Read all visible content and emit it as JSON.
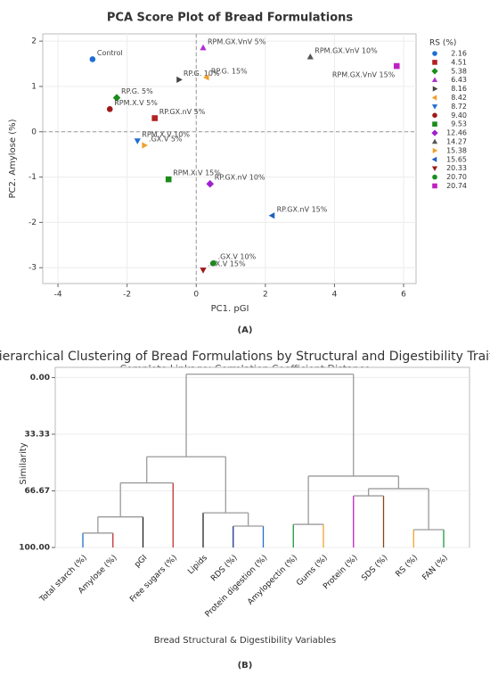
{
  "chart_data": [
    {
      "type": "scatter",
      "title": "PCA Score Plot of Bread Formulations",
      "xlabel": "PC1. pGI",
      "ylabel": "PC2. Amylose (%)",
      "panel_label": "(A)",
      "legend_title": "RS (%)",
      "xlim": [
        -4.44,
        6.36
      ],
      "xticks": [
        -4,
        -2,
        0,
        2,
        4,
        6
      ],
      "ylim": [
        -3.35,
        2.16
      ],
      "yticks": [
        -3,
        -2,
        -1,
        0,
        1,
        2
      ],
      "grid": true,
      "reference_lines": {
        "x": 0,
        "y": 0
      },
      "series": [
        {
          "name": "2.16",
          "color": "#1f6fd1",
          "marker": "circle",
          "labels": [
            "Control"
          ],
          "x": [
            -3.0
          ],
          "values": [
            1.6
          ]
        },
        {
          "name": "4.51",
          "color": "#b22222",
          "marker": "square",
          "labels": [
            "RP.GX.nV 5%"
          ],
          "x": [
            -1.2
          ],
          "values": [
            0.3
          ]
        },
        {
          "name": "5.38",
          "color": "#1a8c1a",
          "marker": "diamond",
          "labels": [
            "RP.G. 5%"
          ],
          "x": [
            -2.3
          ],
          "values": [
            0.75
          ]
        },
        {
          "name": "6.43",
          "color": "#b030d0",
          "marker": "triangle-up",
          "labels": [
            "RPM.GX.VnV 5%"
          ],
          "x": [
            0.2
          ],
          "values": [
            1.85
          ]
        },
        {
          "name": "8.16",
          "color": "#444444",
          "marker": "triangle-right",
          "labels": [
            "RP.G. 10%"
          ],
          "x": [
            -0.5
          ],
          "values": [
            1.15
          ]
        },
        {
          "name": "8.42",
          "color": "#f0a030",
          "marker": "triangle-left",
          "labels": [
            "RP.G. 15%"
          ],
          "x": [
            0.3
          ],
          "values": [
            1.2
          ]
        },
        {
          "name": "8.72",
          "color": "#1f6fd1",
          "marker": "triangle-down",
          "labels": [
            "RPM.X.V 10%"
          ],
          "x": [
            -1.7
          ],
          "values": [
            -0.2
          ]
        },
        {
          "name": "9.40",
          "color": "#a01818",
          "marker": "circle",
          "labels": [
            "RPM.X.V 5%"
          ],
          "x": [
            -2.5
          ],
          "values": [
            0.5
          ]
        },
        {
          "name": "9.53",
          "color": "#1a8c1a",
          "marker": "square",
          "labels": [
            "RPM.X.V 15%"
          ],
          "x": [
            -0.8
          ],
          "values": [
            -1.05
          ]
        },
        {
          "name": "12.46",
          "color": "#a020d0",
          "marker": "diamond",
          "labels": [
            "RP.GX.nV 10%"
          ],
          "x": [
            0.4
          ],
          "values": [
            -1.15
          ]
        },
        {
          "name": "14.27",
          "color": "#555555",
          "marker": "triangle-up",
          "labels": [
            "RPM.GX.VnV 10%"
          ],
          "x": [
            3.3
          ],
          "values": [
            1.65
          ]
        },
        {
          "name": "15.38",
          "color": "#f0a030",
          "marker": "triangle-right",
          "labels": [
            ".GX.V 5%"
          ],
          "x": [
            -1.5
          ],
          "values": [
            -0.3
          ]
        },
        {
          "name": "15.65",
          "color": "#1f5fc0",
          "marker": "triangle-left",
          "labels": [
            "RP.GX.nV 15%"
          ],
          "x": [
            2.2
          ],
          "values": [
            -1.85
          ]
        },
        {
          "name": "20.33",
          "color": "#a01818",
          "marker": "triangle-down",
          "labels": [
            ".GX.V 15%"
          ],
          "x": [
            0.2
          ],
          "values": [
            -3.05
          ]
        },
        {
          "name": "20.70",
          "color": "#1a8c1a",
          "marker": "circle",
          "labels": [
            ".GX.V 10%"
          ],
          "x": [
            0.5
          ],
          "values": [
            -2.9
          ]
        },
        {
          "name": "20.74",
          "color": "#c020c0",
          "marker": "square",
          "labels": [
            "RPM.GX.VnV 15%"
          ],
          "x": [
            5.8
          ],
          "values": [
            1.45
          ]
        }
      ]
    },
    {
      "type": "dendrogram",
      "title": "Hierarchical Clustering of Bread Formulations by Structural and Digestibility Traits",
      "subtitle": "Complete Linkage; Correlation Coefficient Distance",
      "ylabel": "Similarity",
      "xlabel": "Bread Structural & Digestibility Variables",
      "panel_label": "(B)",
      "ylim": [
        100,
        -6
      ],
      "yticks": [
        {
          "value": 0,
          "label": "0.00"
        },
        {
          "value": 33.33,
          "label": "33.33"
        },
        {
          "value": 66.67,
          "label": "66.67"
        },
        {
          "value": 100,
          "label": "100.00"
        }
      ],
      "grid": true,
      "link_color": "#9a9a9a",
      "leaves": [
        "Total starch (%)",
        "Amylose (%)",
        "pGI",
        "Free sugars (%)",
        "Lipids",
        "RDS (%)",
        "Protein digestion (%)",
        "Amylopectin (%)",
        "Gums (%)",
        "Protein (%)",
        "SDS (%)",
        "RS (%)",
        "FAN (%)"
      ],
      "leaf_colors": [
        "#1f6fd1",
        "#c03030",
        "#222222",
        "#c03030",
        "#222222",
        "#1a2f8a",
        "#1f6fd1",
        "#1a9a3a",
        "#f0a030",
        "#c020c0",
        "#8b4513",
        "#f0a030",
        "#1a9a3a"
      ],
      "merges": [
        {
          "left": 0,
          "right": 1,
          "similarity": 91.5
        },
        {
          "left": 13,
          "right": 2,
          "similarity": 82
        },
        {
          "left": 14,
          "right": 3,
          "similarity": 62
        },
        {
          "left": 5,
          "right": 6,
          "similarity": 87.4
        },
        {
          "left": 4,
          "right": 16,
          "similarity": 79.6
        },
        {
          "left": 15,
          "right": 17,
          "similarity": 46.6
        },
        {
          "left": 7,
          "right": 8,
          "similarity": 86.4
        },
        {
          "left": 9,
          "right": 10,
          "similarity": 69.6
        },
        {
          "left": 11,
          "right": 12,
          "similarity": 89.5
        },
        {
          "left": 20,
          "right": 21,
          "similarity": 65.4
        },
        {
          "left": 19,
          "right": 22,
          "similarity": 58
        },
        {
          "left": 18,
          "right": 23,
          "similarity": -2
        }
      ]
    }
  ]
}
